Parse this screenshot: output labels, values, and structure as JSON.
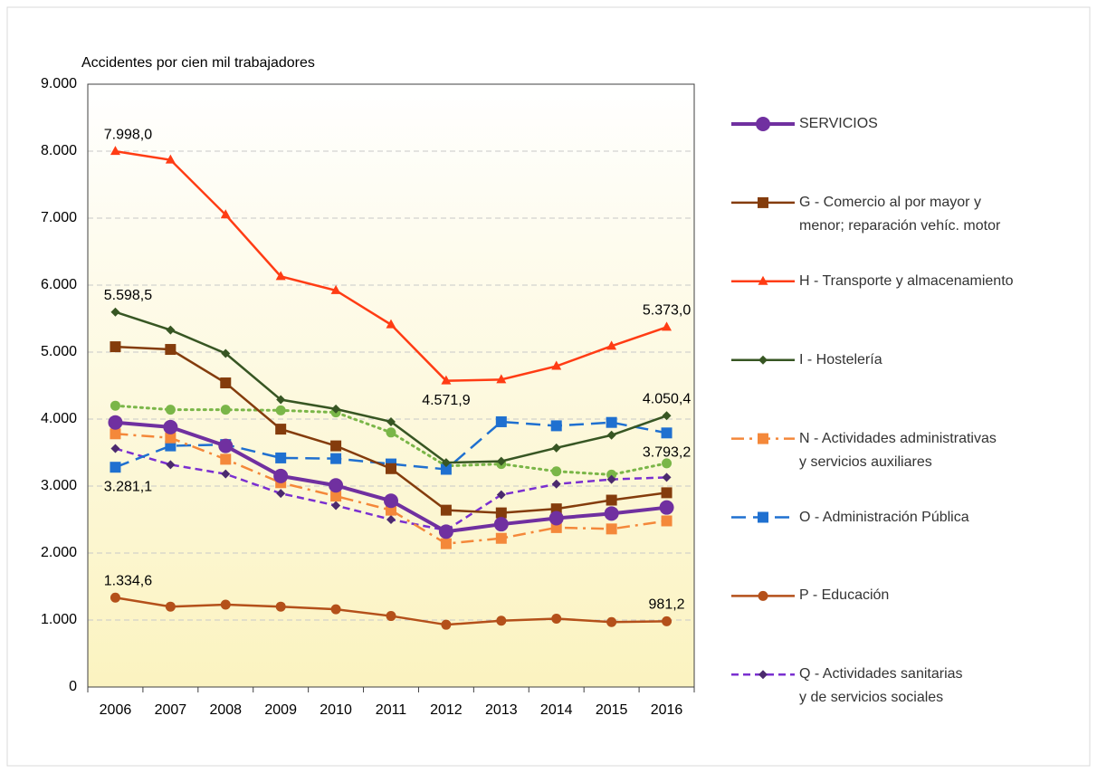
{
  "chart_data": {
    "type": "line",
    "y_label": "Accidentes por cien mil trabajadores",
    "categories": [
      "2006",
      "2007",
      "2008",
      "2009",
      "2010",
      "2011",
      "2012",
      "2013",
      "2014",
      "2015",
      "2016"
    ],
    "ylim": [
      0,
      9000
    ],
    "yticks": [
      0,
      {
        "value": 1000,
        "label": "1.000"
      },
      {
        "value": 2000,
        "label": "2.000"
      },
      {
        "value": 3000,
        "label": "3.000"
      },
      {
        "value": 4000,
        "label": "4.000"
      },
      {
        "value": 5000,
        "label": "5.000"
      },
      {
        "value": 6000,
        "label": "6.000"
      },
      {
        "value": 7000,
        "label": "7.000"
      },
      {
        "value": 8000,
        "label": "8.000"
      },
      {
        "value": 9000,
        "label": "9.000"
      }
    ],
    "grid": true,
    "series": [
      {
        "name": "SERVICIOS",
        "color": "#7030a0",
        "marker": "circle",
        "dash": "solid",
        "width": 4,
        "values": [
          3950,
          3880,
          3600,
          3150,
          3010,
          2780,
          2320,
          2430,
          2520,
          2590,
          2680
        ]
      },
      {
        "name": "G - Comercio al por mayor y\nmenor; reparación vehíc. motor",
        "color": "#843c0c",
        "marker": "square",
        "dash": "solid",
        "width": 2.5,
        "values": [
          5080,
          5040,
          4540,
          3850,
          3600,
          3260,
          2640,
          2600,
          2660,
          2790,
          2900
        ]
      },
      {
        "name": "H - Transporte y almacenamiento",
        "color": "#ff3c14",
        "marker": "triangle",
        "dash": "solid",
        "width": 2.5,
        "values": [
          7998,
          7870,
          7050,
          6130,
          5920,
          5410,
          4571.9,
          4590,
          4790,
          5090,
          5373
        ],
        "value_labels": [
          "7.998,0",
          null,
          null,
          null,
          null,
          null,
          "4.571,9",
          null,
          null,
          null,
          "5.373,0"
        ]
      },
      {
        "name": "I - Hostelería",
        "color": "#375623",
        "marker": "diamond",
        "dash": "solid",
        "width": 2.5,
        "values": [
          5598.5,
          5330,
          4980,
          4290,
          4150,
          3960,
          3350,
          3370,
          3570,
          3760,
          4050.4
        ],
        "value_labels": [
          "5.598,5",
          null,
          null,
          null,
          null,
          null,
          null,
          null,
          null,
          null,
          "4.050,4"
        ]
      },
      {
        "name": "N - Actividades administrativas\ny servicios auxiliares",
        "color": "#f4883a",
        "marker": "square",
        "dash": "dashdot",
        "width": 2.5,
        "values": [
          3780,
          3720,
          3400,
          3050,
          2850,
          2640,
          2140,
          2220,
          2380,
          2360,
          2480
        ]
      },
      {
        "name": "O - Administración Pública",
        "color": "#1f70d0",
        "marker": "square",
        "dash": "longdash",
        "width": 2.5,
        "values": [
          3281.1,
          3600,
          3620,
          3420,
          3410,
          3330,
          3250,
          3960,
          3900,
          3950,
          3793.2
        ],
        "value_labels": [
          "3.281,1",
          null,
          null,
          null,
          null,
          null,
          null,
          null,
          null,
          null,
          "3.793,2"
        ]
      },
      {
        "name": "P - Educación",
        "color": "#b4501a",
        "marker": "circle-small",
        "dash": "solid",
        "width": 2.5,
        "values": [
          1334.6,
          1200,
          1230,
          1200,
          1160,
          1060,
          930,
          990,
          1020,
          970,
          981.2
        ],
        "value_labels": [
          "1.334,6",
          null,
          null,
          null,
          null,
          null,
          null,
          null,
          null,
          null,
          "981,2"
        ]
      },
      {
        "name": "Q - Actividades sanitarias\ny de servicios sociales",
        "color": "#7a2fd0",
        "marker": "diamond",
        "dash": "dash",
        "width": 2.5,
        "values": [
          3560,
          3320,
          3180,
          2890,
          2710,
          2500,
          2340,
          2870,
          3030,
          3100,
          3130
        ]
      },
      {
        "name": null,
        "color": "#7ab648",
        "marker": "circle-small",
        "dash": "dot",
        "width": 3,
        "values": [
          4200,
          4140,
          4140,
          4130,
          4100,
          3800,
          3300,
          3330,
          3220,
          3170,
          3340
        ]
      }
    ]
  }
}
